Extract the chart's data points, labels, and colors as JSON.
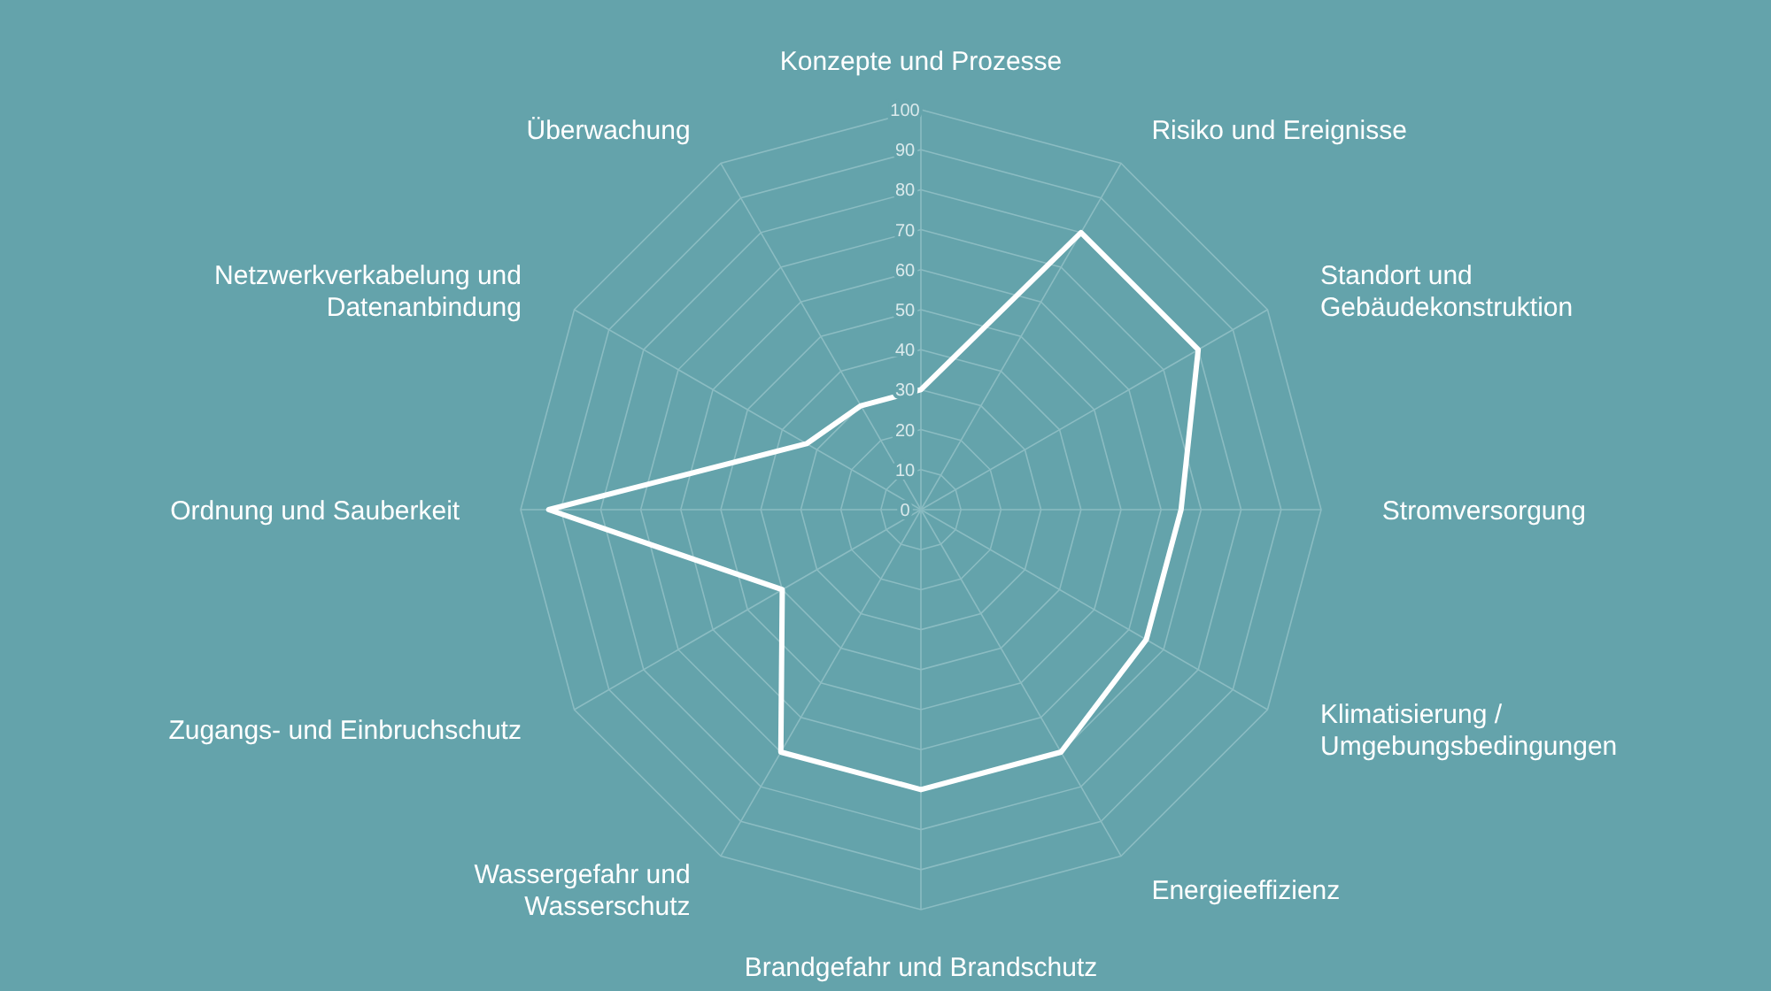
{
  "chart_data": {
    "type": "radar",
    "categories": [
      "Konzepte und Prozesse",
      "Risiko und Ereignisse",
      "Standort und Gebäudekonstruktion",
      "Stromversorgung",
      "Klimatisierung / Umgebungsbedingungen",
      "Energieeffizienz",
      "Brandgefahr und Brandschutz",
      "Wassergefahr und Wasserschutz",
      "Zugangs- und Einbruchschutz",
      "Ordnung und Sauberkeit",
      "Netzwerkverkabelung und Datenanbindung",
      "Überwachung"
    ],
    "series": [
      {
        "color": "#ffffff",
        "values": [
          30,
          80,
          80,
          65,
          65,
          70,
          70,
          70,
          40,
          93,
          33,
          30
        ]
      }
    ],
    "ylim": [
      0,
      100
    ],
    "yticks": [
      0,
      10,
      20,
      30,
      40,
      50,
      60,
      70,
      80,
      90,
      100
    ],
    "grid": true,
    "marker": "none",
    "line_style": "solid"
  }
}
